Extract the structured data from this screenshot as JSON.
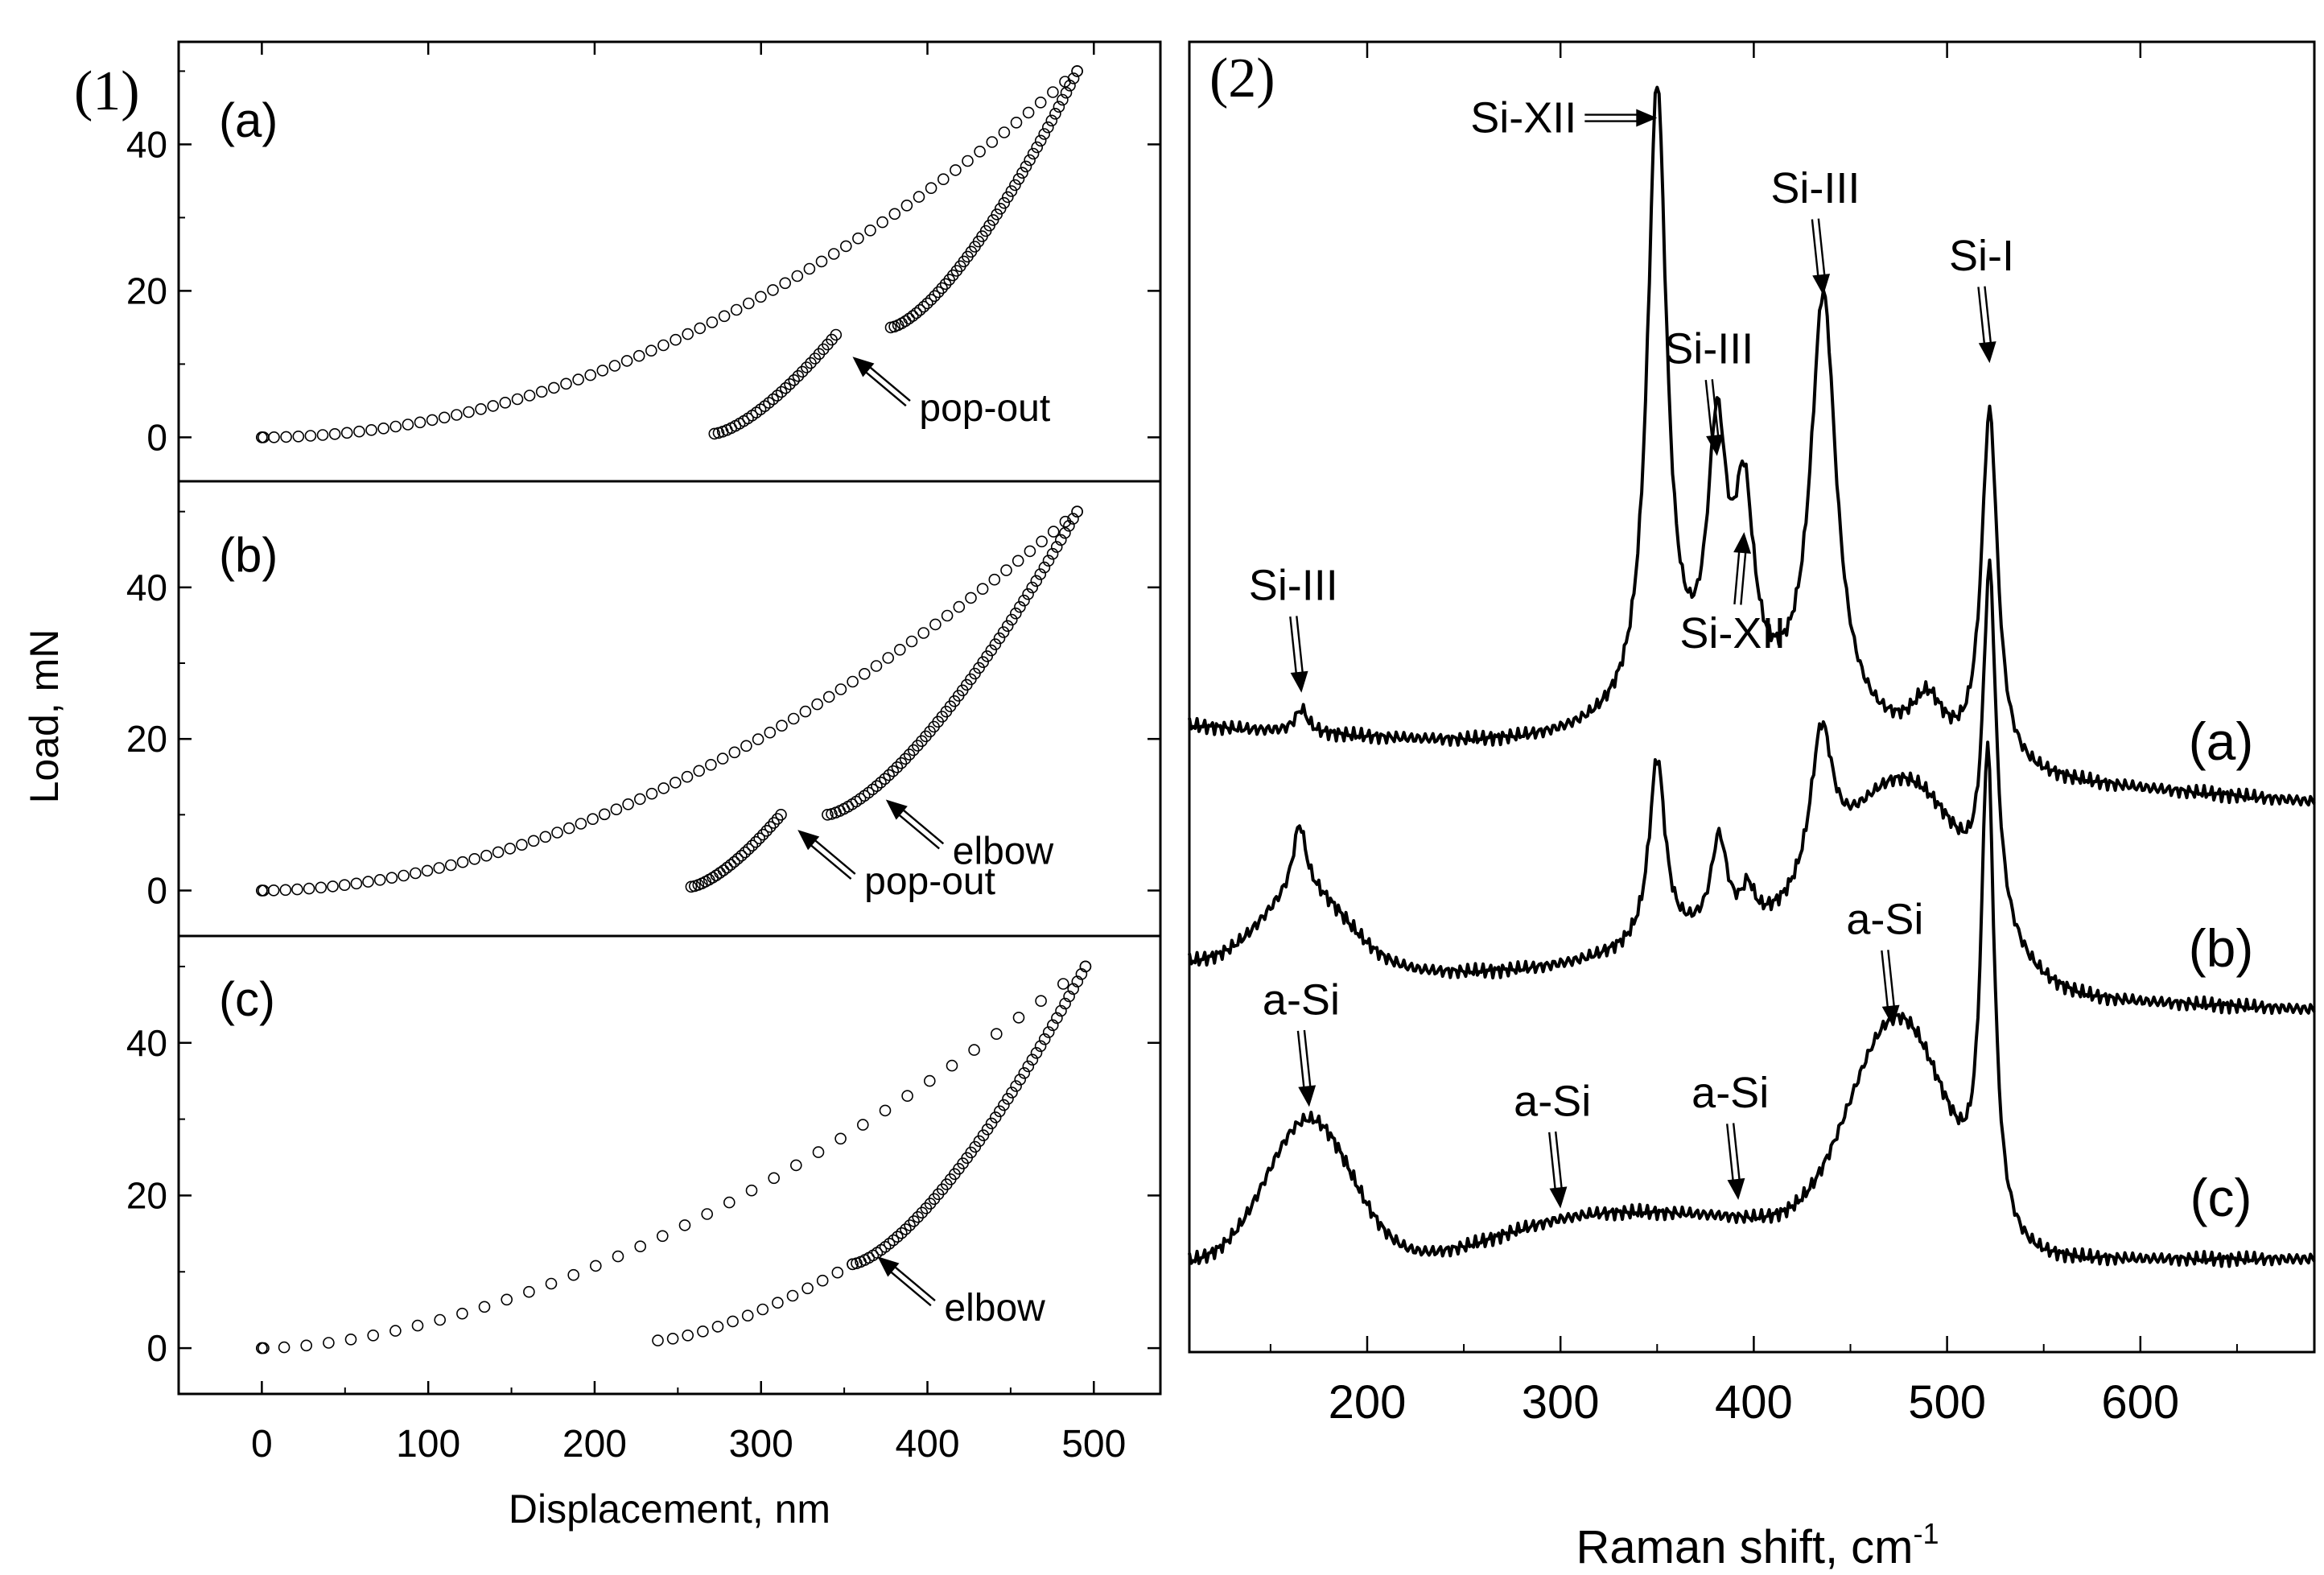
{
  "figure_labels": {
    "left": "(1)",
    "right": "(2)"
  },
  "chart_data": [
    {
      "type": "scatter",
      "title": "(1)",
      "xlabel": "Displacement, nm",
      "ylabel": "Load, mN",
      "xlim": [
        -50,
        540
      ],
      "ylim": [
        -6,
        54
      ],
      "xticks": [
        0,
        100,
        200,
        300,
        400,
        500
      ],
      "yticks": [
        0,
        20,
        40
      ],
      "max_load": 50,
      "panels": [
        {
          "label": "(a)",
          "max_disp": 490,
          "loading_exponent": 1.95,
          "loading_points": 68,
          "unloading_segments": [
            {
              "from_disp": 490,
              "to_disp": 378,
              "from_load": 50,
              "to_load": 15,
              "points": 52
            },
            {
              "from_disp": 345,
              "to_disp": 272,
              "from_load": 14,
              "to_load": 0.5,
              "points": 30
            }
          ],
          "annotations": [
            {
              "text": "pop-out",
              "x_disp": 355,
              "y_load": 11
            }
          ]
        },
        {
          "label": "(b)",
          "max_disp": 490,
          "loading_exponent": 1.85,
          "loading_points": 70,
          "unloading_segments": [
            {
              "from_disp": 490,
              "to_disp": 340,
              "from_load": 50,
              "to_load": 10,
              "points": 62
            },
            {
              "from_disp": 312,
              "to_disp": 258,
              "from_load": 10,
              "to_load": 0.5,
              "points": 26
            }
          ],
          "annotations": [
            {
              "text": "elbow",
              "x_disp": 375,
              "y_load": 12
            },
            {
              "text": "pop-out",
              "x_disp": 322,
              "y_load": 8
            }
          ]
        },
        {
          "label": "(c)",
          "max_disp": 495,
          "loading_exponent": 1.7,
          "loading_points": 38,
          "unloading_segments": [
            {
              "from_disp": 495,
              "to_disp": 355,
              "from_load": 50,
              "to_load": 11,
              "points": 58
            },
            {
              "from_disp": 355,
              "to_disp": 238,
              "from_load": 11,
              "to_load": 1,
              "points": 14
            }
          ],
          "annotations": [
            {
              "text": "elbow",
              "x_disp": 370,
              "y_load": 12
            }
          ]
        }
      ]
    },
    {
      "type": "line",
      "title": "(2)",
      "xlabel": "Raman shift, cm",
      "xlabel_sup": "-1",
      "xlim": [
        108,
        690
      ],
      "xticks": [
        200,
        300,
        400,
        500,
        600
      ],
      "series": [
        {
          "name": "(a)",
          "baseline_start": 4.1,
          "baseline_end": 3.2,
          "peaks": [
            {
              "center": 166,
              "height": 0.28,
              "width": 4
            },
            {
              "center": 350,
              "height": 7.4,
              "width": 6
            },
            {
              "center": 381,
              "height": 3.0,
              "width": 6
            },
            {
              "center": 395,
              "height": 2.2,
              "width": 6
            },
            {
              "center": 436,
              "height": 5.0,
              "width": 8
            },
            {
              "center": 490,
              "height": 0.6,
              "width": 10
            },
            {
              "center": 522,
              "height": 4.2,
              "width": 5
            }
          ],
          "broad": [
            {
              "center": 400,
              "height": 0.6,
              "width": 60
            }
          ]
        },
        {
          "name": "(b)",
          "baseline_start": 1.3,
          "baseline_end": 0.75,
          "peaks": [
            {
              "center": 165,
              "height": 0.8,
              "width": 4
            },
            {
              "center": 350,
              "height": 2.2,
              "width": 5
            },
            {
              "center": 382,
              "height": 1.1,
              "width": 5
            },
            {
              "center": 397,
              "height": 0.4,
              "width": 4
            },
            {
              "center": 435,
              "height": 1.8,
              "width": 7
            },
            {
              "center": 522,
              "height": 4.1,
              "width": 4
            }
          ],
          "broad": [
            {
              "center": 168,
              "height": 0.9,
              "width": 22
            },
            {
              "center": 480,
              "height": 2.2,
              "width": 32
            },
            {
              "center": 400,
              "height": 0.6,
              "width": 60
            }
          ]
        },
        {
          "name": "(c)",
          "baseline_start": -2.25,
          "baseline_end": -2.2,
          "peaks": [
            {
              "center": 521,
              "height": 5.6,
              "width": 4
            }
          ],
          "broad": [
            {
              "center": 170,
              "height": 1.7,
              "width": 22
            },
            {
              "center": 475,
              "height": 2.7,
              "width": 25
            },
            {
              "center": 380,
              "height": 0.5,
              "width": 60
            },
            {
              "center": 300,
              "height": 0.3,
              "width": 40
            }
          ]
        }
      ],
      "annotations": [
        {
          "text": "Si-XII",
          "target_shift": 350,
          "target_value": 11.3,
          "arrow": "right"
        },
        {
          "text": "Si-III",
          "target_shift": 381,
          "target_value": 7.3,
          "arrow": "down"
        },
        {
          "text": "Si-III",
          "target_shift": 436,
          "target_value": 9.2,
          "arrow": "down"
        },
        {
          "text": "Si-I",
          "target_shift": 522,
          "target_value": 8.4,
          "arrow": "down"
        },
        {
          "text": "Si-III",
          "target_shift": 166,
          "target_value": 4.5,
          "arrow": "down"
        },
        {
          "text": "Si-XII",
          "target_shift": 395,
          "target_value": 6.4,
          "arrow": "up"
        },
        {
          "text": "a-Si",
          "target_shift": 170,
          "target_value": -0.4,
          "arrow": "down"
        },
        {
          "text": "a-Si",
          "target_shift": 300,
          "target_value": -1.6,
          "arrow": "down"
        },
        {
          "text": "a-Si",
          "target_shift": 392,
          "target_value": -1.5,
          "arrow": "down"
        },
        {
          "text": "a-Si",
          "target_shift": 472,
          "target_value": 0.55,
          "arrow": "down"
        }
      ]
    }
  ]
}
